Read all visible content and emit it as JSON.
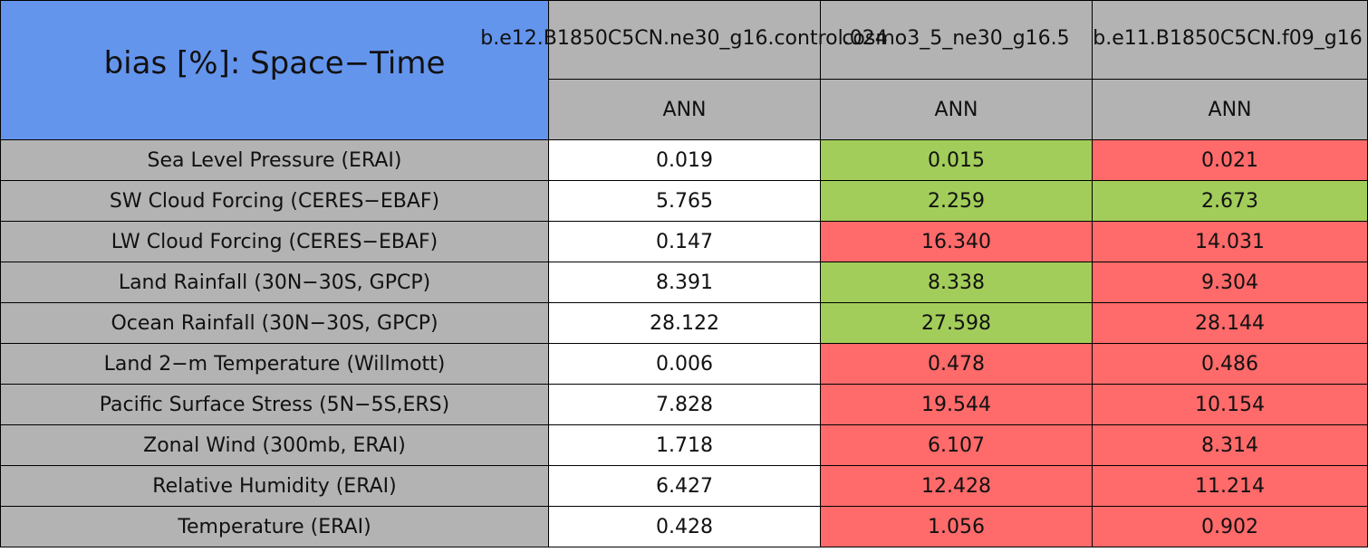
{
  "title": "bias [%]: Space−Time",
  "title_color": "#6495ed",
  "header_color": "#b3b3b3",
  "table": {
    "columns": [
      "b.e12.B1850C5CN.ne30_g16.control.024",
      "cosmo3_5_ne30_g16.5",
      "b.e11.B1850C5CN.f09_g16"
    ],
    "periods": [
      "ANN",
      "ANN",
      "ANN"
    ],
    "rows": [
      {
        "label": "Sea Level Pressure (ERAI)",
        "values": [
          "0.019",
          "0.015",
          "0.021"
        ],
        "colors": [
          "#ffffff",
          "#a2cd5a",
          "#ff6a6a"
        ]
      },
      {
        "label": "SW Cloud Forcing (CERES−EBAF)",
        "values": [
          "5.765",
          "2.259",
          "2.673"
        ],
        "colors": [
          "#ffffff",
          "#a2cd5a",
          "#a2cd5a"
        ]
      },
      {
        "label": "LW Cloud Forcing (CERES−EBAF)",
        "values": [
          "0.147",
          "16.340",
          "14.031"
        ],
        "colors": [
          "#ffffff",
          "#ff6a6a",
          "#ff6a6a"
        ]
      },
      {
        "label": "Land Rainfall (30N−30S, GPCP)",
        "values": [
          "8.391",
          "8.338",
          "9.304"
        ],
        "colors": [
          "#ffffff",
          "#a2cd5a",
          "#ff6a6a"
        ]
      },
      {
        "label": "Ocean Rainfall (30N−30S, GPCP)",
        "values": [
          "28.122",
          "27.598",
          "28.144"
        ],
        "colors": [
          "#ffffff",
          "#a2cd5a",
          "#ff6a6a"
        ]
      },
      {
        "label": "Land 2−m Temperature (Willmott)",
        "values": [
          "0.006",
          "0.478",
          "0.486"
        ],
        "colors": [
          "#ffffff",
          "#ff6a6a",
          "#ff6a6a"
        ]
      },
      {
        "label": "Pacific Surface Stress (5N−5S,ERS)",
        "values": [
          "7.828",
          "19.544",
          "10.154"
        ],
        "colors": [
          "#ffffff",
          "#ff6a6a",
          "#ff6a6a"
        ]
      },
      {
        "label": "Zonal Wind (300mb, ERAI)",
        "values": [
          "1.718",
          "6.107",
          "8.314"
        ],
        "colors": [
          "#ffffff",
          "#ff6a6a",
          "#ff6a6a"
        ]
      },
      {
        "label": "Relative Humidity (ERAI)",
        "values": [
          "6.427",
          "12.428",
          "11.214"
        ],
        "colors": [
          "#ffffff",
          "#ff6a6a",
          "#ff6a6a"
        ]
      },
      {
        "label": "Temperature (ERAI)",
        "values": [
          "0.428",
          "1.056",
          "0.902"
        ],
        "colors": [
          "#ffffff",
          "#ff6a6a",
          "#ff6a6a"
        ]
      }
    ]
  }
}
